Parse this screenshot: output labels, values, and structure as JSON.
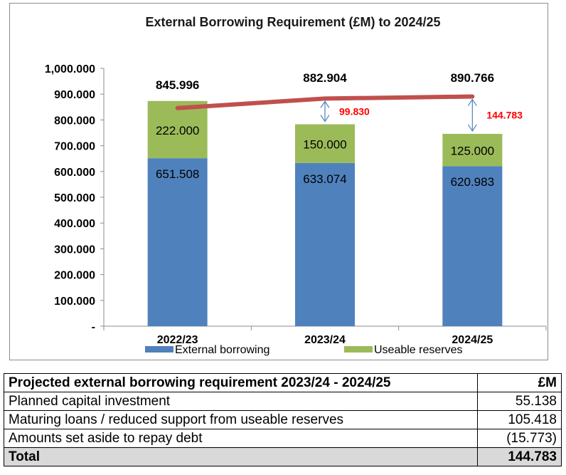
{
  "chart_data": {
    "type": "bar",
    "stacked": true,
    "title": "External Borrowing Requirement (£M) to 2024/25",
    "categories": [
      "2022/23",
      "2023/24",
      "2024/25"
    ],
    "ylim": [
      0,
      1000
    ],
    "yticks": [
      {
        "value": 0,
        "label": "-"
      },
      {
        "value": 100,
        "label": "100.000"
      },
      {
        "value": 200,
        "label": "200.000"
      },
      {
        "value": 300,
        "label": "300.000"
      },
      {
        "value": 400,
        "label": "400.000"
      },
      {
        "value": 500,
        "label": "500.000"
      },
      {
        "value": 600,
        "label": "600.000"
      },
      {
        "value": 700,
        "label": "700.000"
      },
      {
        "value": 800,
        "label": "800.000"
      },
      {
        "value": 900,
        "label": "900.000"
      },
      {
        "value": 1000,
        "label": "1,000.000"
      }
    ],
    "series": [
      {
        "name": "External borrowing",
        "values": [
          651.508,
          633.074,
          620.983
        ],
        "labels": [
          "651.508",
          "633.074",
          "620.983"
        ],
        "color": "#4f81bd"
      },
      {
        "name": "Useable reserves",
        "values": [
          222.0,
          150.0,
          125.0
        ],
        "labels": [
          "222.000",
          "150.000",
          "125.000"
        ],
        "color": "#9bbb59"
      }
    ],
    "requirement_line": {
      "values": [
        845.996,
        882.904,
        890.766
      ],
      "labels": [
        "845.996",
        "882.904",
        "890.766"
      ],
      "color": "#c0504d"
    },
    "gaps": [
      {
        "category_index": 1,
        "label": "99.830",
        "from": 783.074,
        "to": 882.904
      },
      {
        "category_index": 2,
        "label": "144.783",
        "from": 745.983,
        "to": 890.766
      }
    ],
    "gap_label_color": "#ff0000",
    "arrow_color": "#4f81bd",
    "legend_position": "bottom",
    "grid": false
  },
  "table": {
    "header": {
      "label": "Projected external borrowing requirement 2023/24 - 2024/25",
      "unit": "£M"
    },
    "rows": [
      {
        "label": "Planned capital investment",
        "value": "55.138"
      },
      {
        "label": "Maturing loans / reduced support from useable reserves",
        "value": "105.418"
      },
      {
        "label": "Amounts set aside to repay debt",
        "value": "(15.773)"
      }
    ],
    "total": {
      "label": "Total",
      "value": "144.783"
    }
  }
}
